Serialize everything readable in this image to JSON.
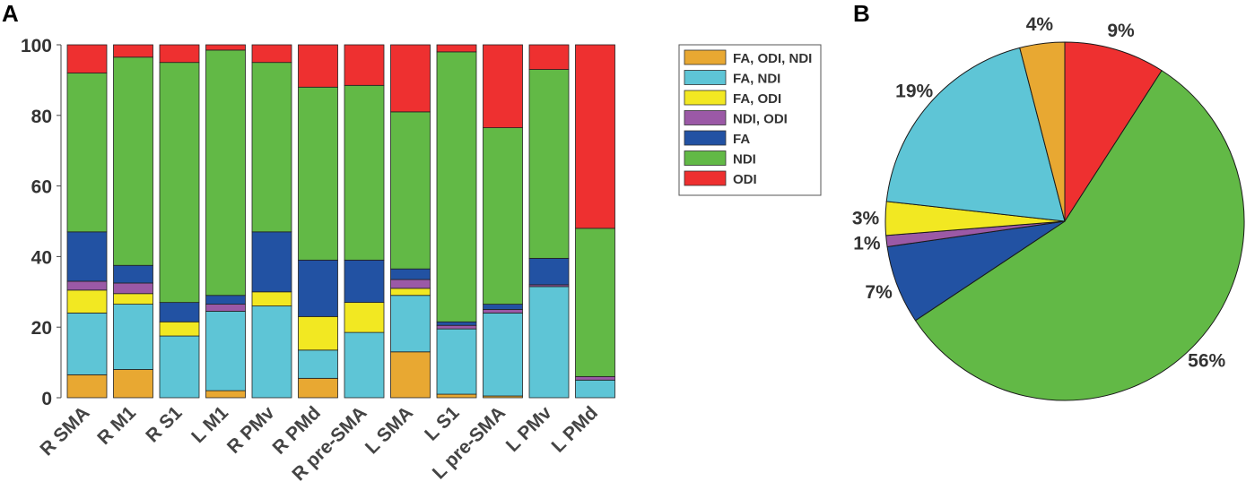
{
  "chart_data": [
    {
      "type": "bar",
      "stacked": true,
      "panel_label": "A",
      "ylim": [
        0,
        100
      ],
      "yticks": [
        0,
        20,
        40,
        60,
        80,
        100
      ],
      "categories": [
        "R SMA",
        "R M1",
        "R S1",
        "L M1",
        "R PMv",
        "R PMd",
        "R pre-SMA",
        "L SMA",
        "L S1",
        "L pre-SMA",
        "L PMv",
        "L PMd"
      ],
      "series": [
        {
          "name": "FA, ODI, NDI",
          "color": "#E8A832",
          "values": [
            6.5,
            8,
            0,
            2,
            0,
            5.5,
            0,
            13,
            1,
            0.5,
            0,
            0
          ]
        },
        {
          "name": "FA, NDI",
          "color": "#5EC5D6",
          "values": [
            17.5,
            18.5,
            17.5,
            22.5,
            26,
            8,
            18.5,
            16,
            18.5,
            23.5,
            31.5,
            5
          ]
        },
        {
          "name": "FA, ODI",
          "color": "#F2E822",
          "values": [
            6.5,
            3,
            4,
            0,
            4,
            9.5,
            8.5,
            2,
            0,
            0,
            0,
            0
          ]
        },
        {
          "name": "NDI, ODI",
          "color": "#9B59A6",
          "values": [
            2.5,
            3,
            0,
            2,
            0,
            0,
            0,
            2.5,
            1,
            1,
            0.5,
            1
          ]
        },
        {
          "name": "FA",
          "color": "#2252A3",
          "values": [
            14,
            5,
            5.5,
            2.5,
            17,
            16,
            12,
            3,
            1,
            1.5,
            7.5,
            0
          ]
        },
        {
          "name": "NDI",
          "color": "#62B946",
          "values": [
            45,
            59,
            68,
            69.5,
            48,
            49,
            49.5,
            44.5,
            76.5,
            50,
            53.5,
            42
          ]
        },
        {
          "name": "ODI",
          "color": "#EE3030",
          "values": [
            8,
            3.5,
            5,
            1.5,
            5,
            12,
            11.5,
            19,
            2,
            23.5,
            7,
            52
          ]
        }
      ]
    },
    {
      "type": "pie",
      "panel_label": "B",
      "start_angle_deg": 0,
      "direction": "clockwise",
      "slices": [
        {
          "label": "9%",
          "value": 9,
          "color": "#EE3030"
        },
        {
          "label": "56%",
          "value": 56,
          "color": "#62B946"
        },
        {
          "label": "7%",
          "value": 7,
          "color": "#2252A3"
        },
        {
          "label": "1%",
          "value": 1,
          "color": "#9B59A6"
        },
        {
          "label": "3%",
          "value": 3,
          "color": "#F2E822"
        },
        {
          "label": "19%",
          "value": 19,
          "color": "#5EC5D6"
        },
        {
          "label": "4%",
          "value": 4,
          "color": "#E8A832"
        }
      ]
    }
  ]
}
